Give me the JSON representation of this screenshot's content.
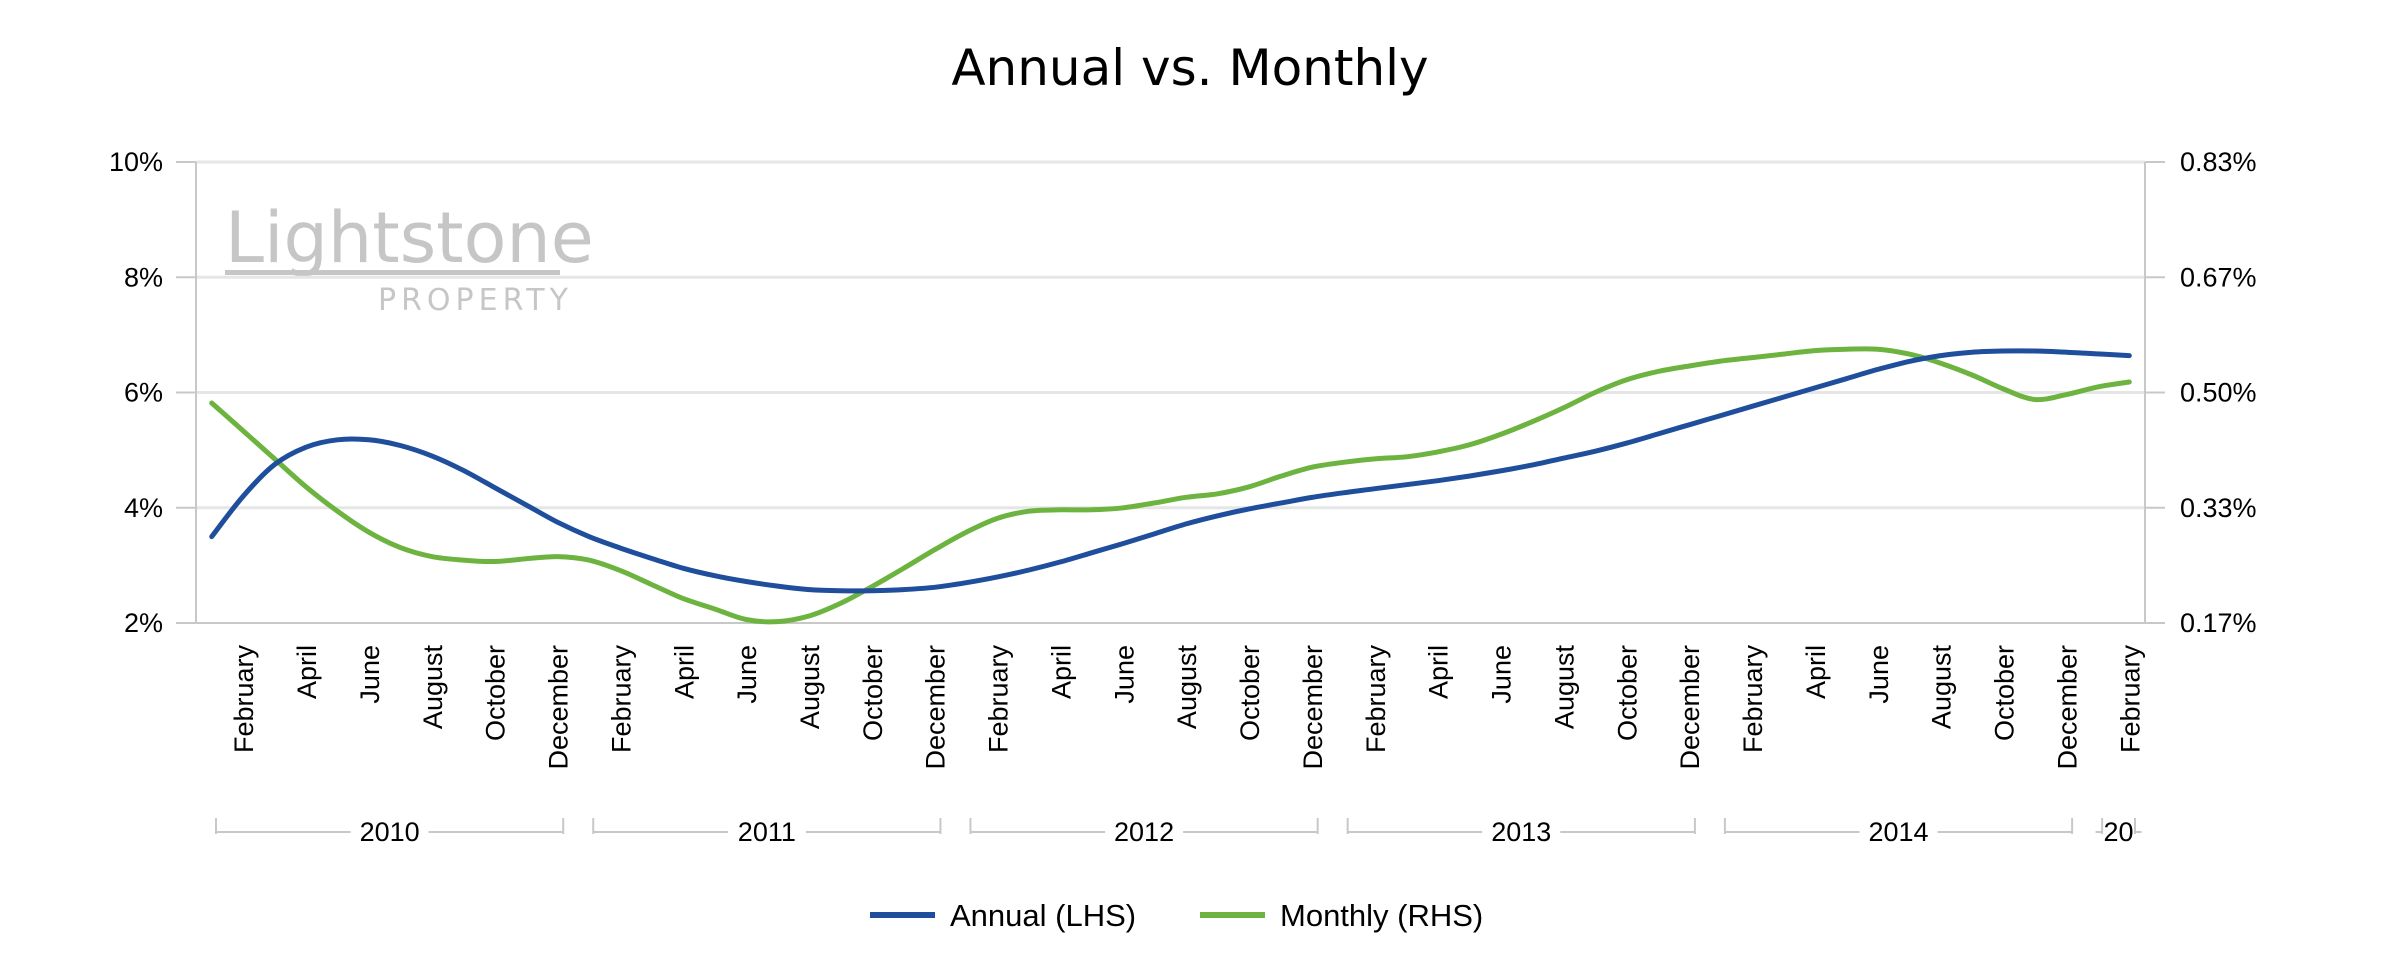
{
  "chart_data": {
    "type": "line",
    "title": "Annual vs. Monthly",
    "x": [
      "2010-01",
      "2010-02",
      "2010-03",
      "2010-04",
      "2010-05",
      "2010-06",
      "2010-07",
      "2010-08",
      "2010-09",
      "2010-10",
      "2010-11",
      "2010-12",
      "2011-01",
      "2011-02",
      "2011-03",
      "2011-04",
      "2011-05",
      "2011-06",
      "2011-07",
      "2011-08",
      "2011-09",
      "2011-10",
      "2011-11",
      "2011-12",
      "2012-01",
      "2012-02",
      "2012-03",
      "2012-04",
      "2012-05",
      "2012-06",
      "2012-07",
      "2012-08",
      "2012-09",
      "2012-10",
      "2012-11",
      "2012-12",
      "2013-01",
      "2013-02",
      "2013-03",
      "2013-04",
      "2013-05",
      "2013-06",
      "2013-07",
      "2013-08",
      "2013-09",
      "2013-10",
      "2013-11",
      "2013-12",
      "2014-01",
      "2014-02",
      "2014-03",
      "2014-04",
      "2014-05",
      "2014-06",
      "2014-07",
      "2014-08",
      "2014-09",
      "2014-10",
      "2014-11",
      "2014-12",
      "2015-01",
      "2015-02"
    ],
    "x_tick_labels": [
      "February",
      "April",
      "June",
      "August",
      "October",
      "December",
      "February",
      "April",
      "June",
      "August",
      "October",
      "December",
      "February",
      "April",
      "June",
      "August",
      "October",
      "December",
      "February",
      "April",
      "June",
      "August",
      "October",
      "December",
      "February",
      "April",
      "June",
      "August",
      "October",
      "December",
      "February"
    ],
    "year_labels": [
      "2010",
      "2011",
      "2012",
      "2013",
      "2014",
      "20"
    ],
    "y_left": {
      "ticks": [
        "2%",
        "4%",
        "6%",
        "8%",
        "10%"
      ],
      "ylim": [
        2,
        10
      ]
    },
    "y_right": {
      "ticks": [
        "0.17%",
        "0.33%",
        "0.50%",
        "0.67%",
        "0.83%"
      ],
      "ylim": [
        0.17,
        0.83
      ]
    },
    "grid": true,
    "legend_position": "bottom",
    "series": [
      {
        "name": "Annual (LHS)",
        "axis": "left",
        "color": "#1f4e9c",
        "values": [
          3.5,
          4.2,
          4.75,
          5.05,
          5.18,
          5.18,
          5.08,
          4.9,
          4.65,
          4.35,
          4.05,
          3.75,
          3.5,
          3.3,
          3.12,
          2.95,
          2.82,
          2.72,
          2.64,
          2.58,
          2.56,
          2.56,
          2.58,
          2.62,
          2.7,
          2.8,
          2.92,
          3.06,
          3.22,
          3.38,
          3.55,
          3.72,
          3.86,
          3.98,
          4.08,
          4.18,
          4.26,
          4.33,
          4.4,
          4.47,
          4.55,
          4.64,
          4.74,
          4.86,
          4.98,
          5.12,
          5.28,
          5.44,
          5.6,
          5.76,
          5.92,
          6.08,
          6.24,
          6.4,
          6.54,
          6.64,
          6.7,
          6.72,
          6.72,
          6.7,
          6.67,
          6.64
        ]
      },
      {
        "name": "Monthly (RHS)",
        "axis": "right",
        "color": "#6db33f",
        "values": [
          0.485,
          0.445,
          0.405,
          0.365,
          0.33,
          0.3,
          0.278,
          0.265,
          0.26,
          0.258,
          0.262,
          0.265,
          0.26,
          0.245,
          0.225,
          0.205,
          0.19,
          0.175,
          0.172,
          0.18,
          0.198,
          0.222,
          0.248,
          0.275,
          0.3,
          0.32,
          0.33,
          0.332,
          0.332,
          0.335,
          0.342,
          0.35,
          0.355,
          0.365,
          0.38,
          0.393,
          0.4,
          0.405,
          0.408,
          0.415,
          0.425,
          0.44,
          0.458,
          0.478,
          0.5,
          0.518,
          0.53,
          0.538,
          0.545,
          0.55,
          0.555,
          0.56,
          0.562,
          0.562,
          0.555,
          0.542,
          0.525,
          0.505,
          0.49,
          0.497,
          0.508,
          0.515
        ]
      }
    ]
  },
  "watermark": {
    "brand": "Lightstone",
    "sub": "PROPERTY"
  }
}
